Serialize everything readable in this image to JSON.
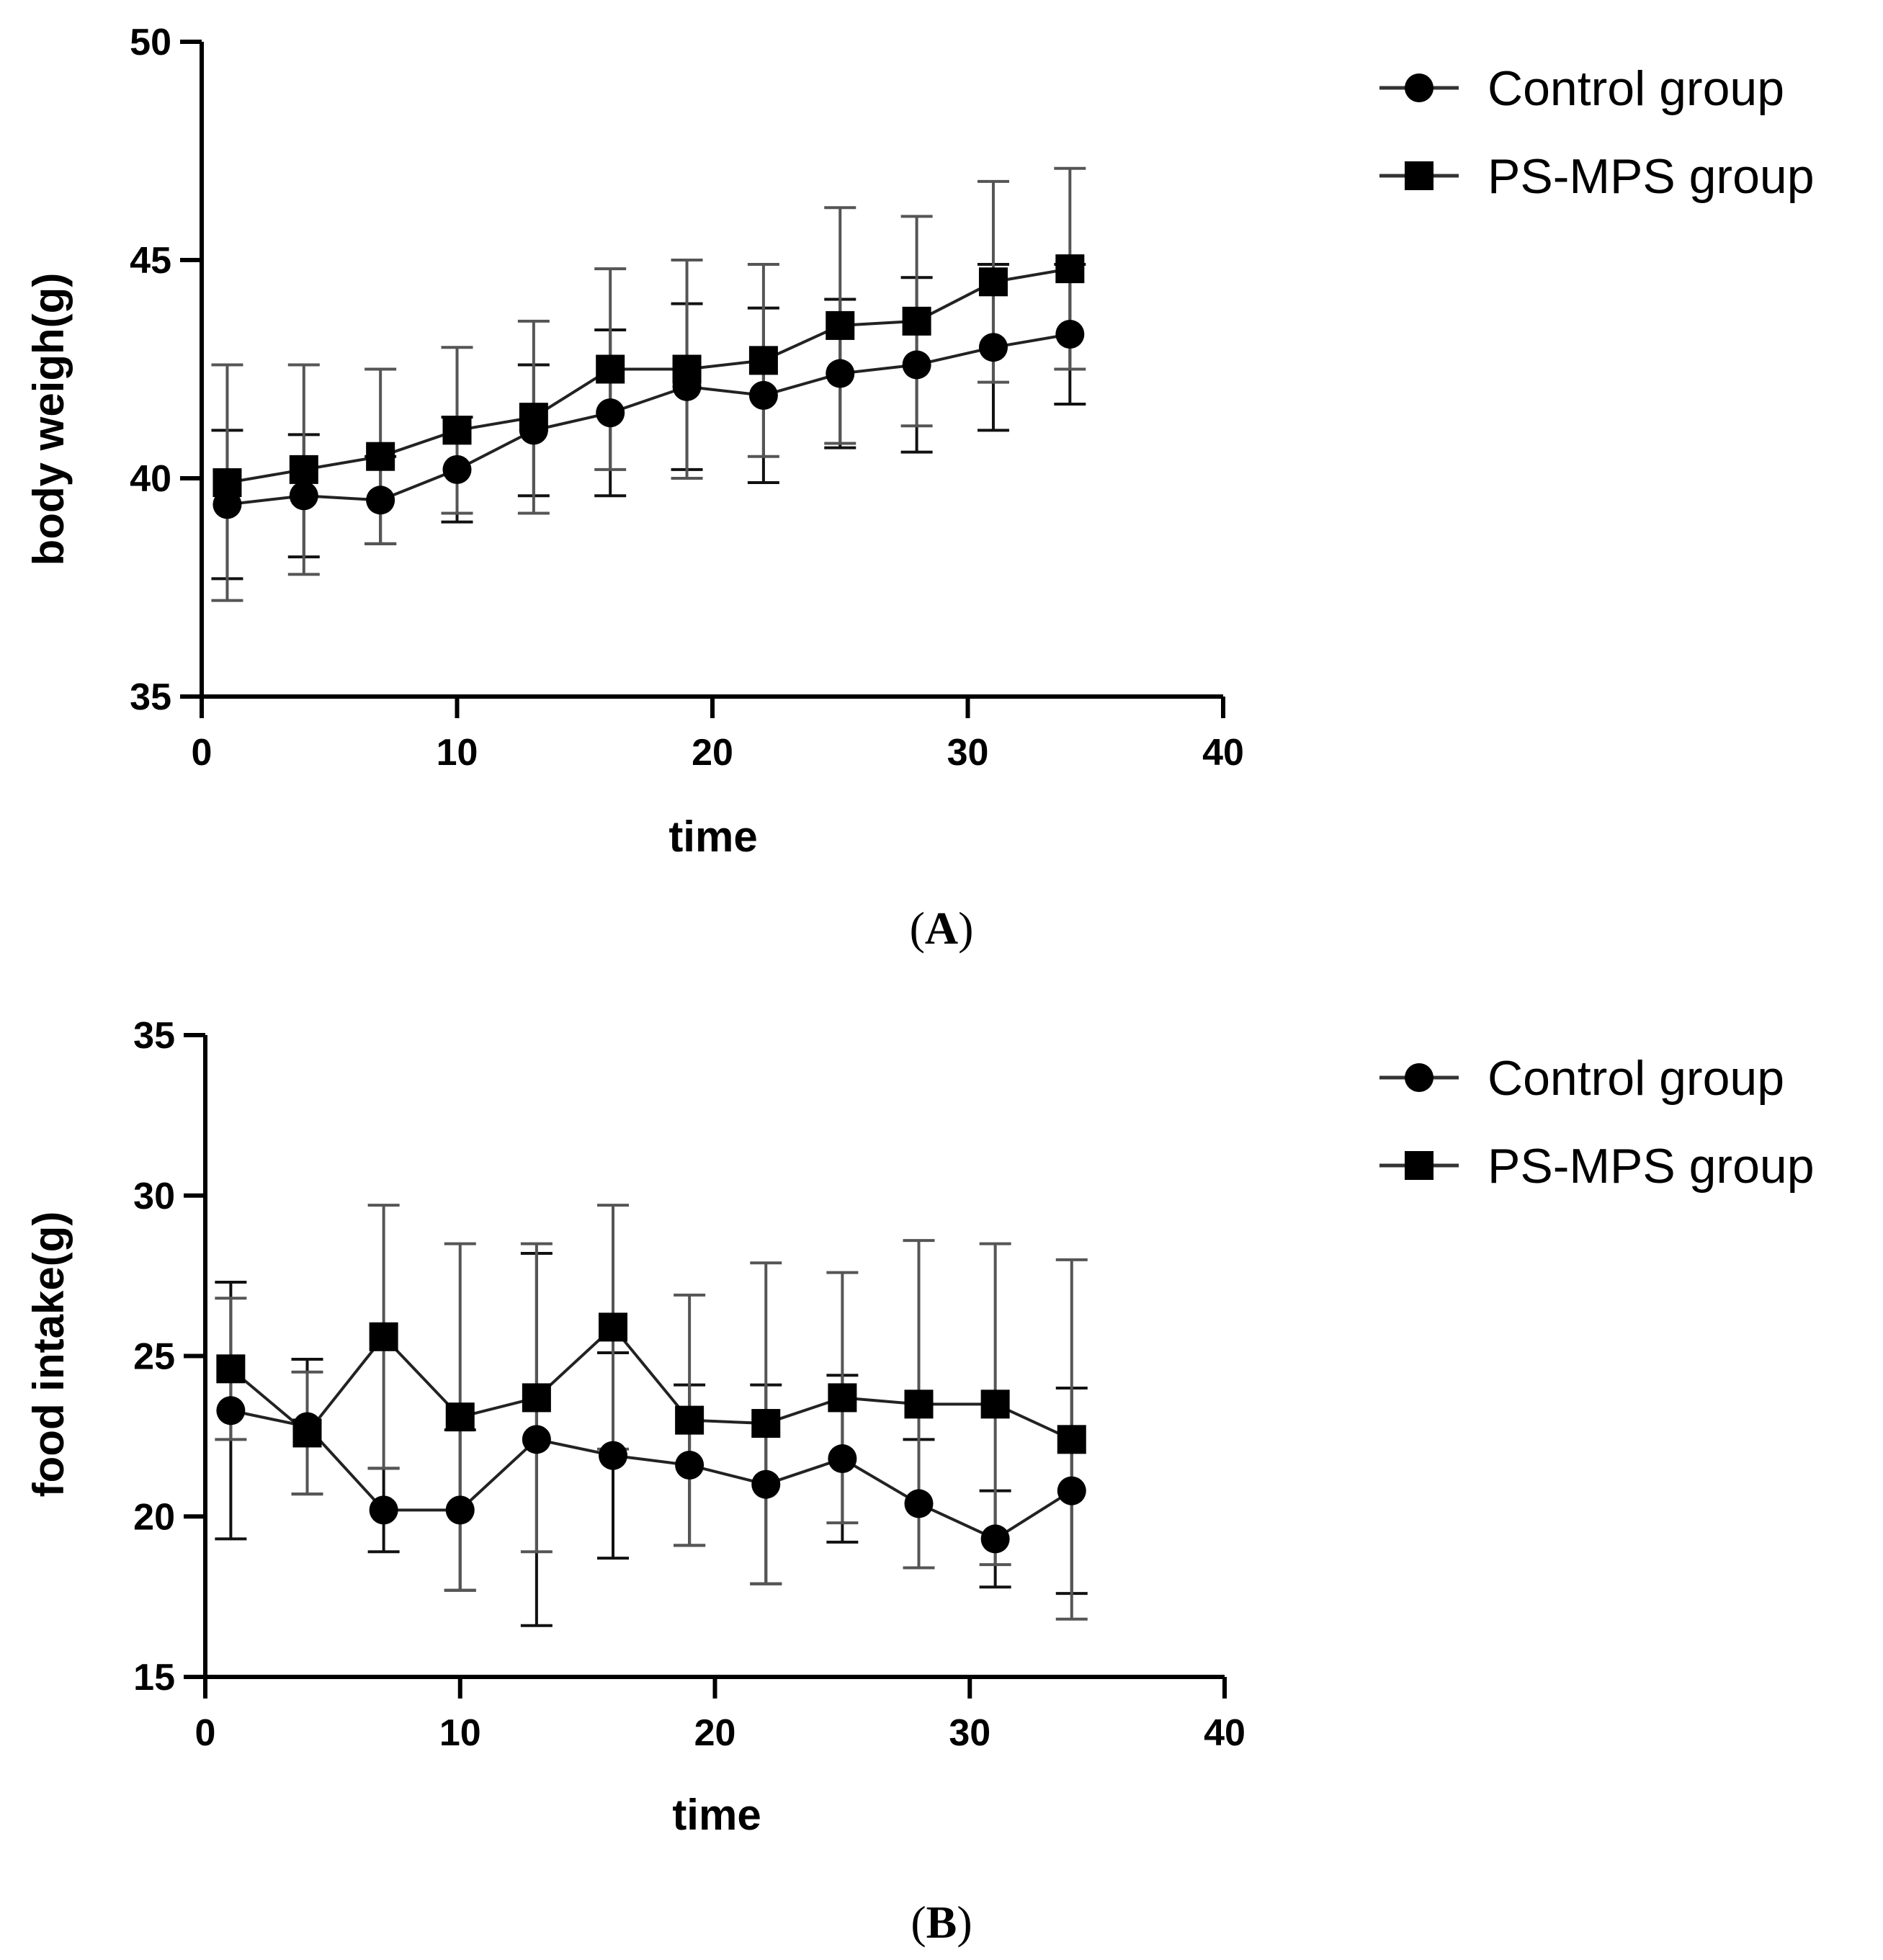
{
  "chart_data": [
    {
      "type": "line",
      "panel": "A",
      "title": "",
      "xlabel": "time",
      "ylabel": "body weigh(g)",
      "xlim": [
        0,
        40
      ],
      "ylim": [
        35,
        50
      ],
      "xticks": [
        0,
        10,
        20,
        30,
        40
      ],
      "yticks": [
        35,
        40,
        45,
        50
      ],
      "legend": "top-right",
      "series": [
        {
          "name": "Control group",
          "marker": "circle",
          "x": [
            1,
            4,
            7,
            10,
            13,
            16,
            19,
            22,
            25,
            28,
            31,
            34
          ],
          "y": [
            39.4,
            39.6,
            39.5,
            40.2,
            41.1,
            41.5,
            42.1,
            41.9,
            42.4,
            42.6,
            43.0,
            43.3
          ],
          "err": [
            1.7,
            1.4,
            1.0,
            1.2,
            1.5,
            1.9,
            1.9,
            2.0,
            1.7,
            2.0,
            1.9,
            1.6
          ]
        },
        {
          "name": "PS-MPS group",
          "marker": "square",
          "x": [
            1,
            4,
            7,
            10,
            13,
            16,
            19,
            22,
            25,
            28,
            31,
            34
          ],
          "y": [
            39.9,
            40.2,
            40.5,
            41.1,
            41.4,
            42.5,
            42.5,
            42.7,
            43.5,
            43.6,
            44.5,
            44.8
          ],
          "err": [
            2.7,
            2.4,
            2.0,
            1.9,
            2.2,
            2.3,
            2.5,
            2.2,
            2.7,
            2.4,
            2.3,
            2.3
          ]
        }
      ]
    },
    {
      "type": "line",
      "panel": "B",
      "title": "",
      "xlabel": "time",
      "ylabel": "food intake(g)",
      "xlim": [
        0,
        40
      ],
      "ylim": [
        15,
        35
      ],
      "xticks": [
        0,
        10,
        20,
        30,
        40
      ],
      "yticks": [
        15,
        20,
        25,
        30,
        35
      ],
      "legend": "top-right",
      "series": [
        {
          "name": "Control group",
          "marker": "circle",
          "x": [
            1,
            4,
            7,
            10,
            13,
            16,
            19,
            22,
            25,
            28,
            31,
            34
          ],
          "y": [
            23.3,
            22.8,
            20.2,
            20.2,
            22.4,
            21.9,
            21.6,
            21.0,
            21.8,
            20.4,
            19.3,
            20.8
          ],
          "err": [
            4.0,
            2.1,
            1.3,
            2.5,
            5.8,
            3.2,
            2.5,
            3.1,
            2.6,
            2.0,
            1.5,
            3.2
          ]
        },
        {
          "name": "PS-MPS group",
          "marker": "square",
          "x": [
            1,
            4,
            7,
            10,
            13,
            16,
            19,
            22,
            25,
            28,
            31,
            34
          ],
          "y": [
            24.6,
            22.6,
            25.6,
            23.1,
            23.7,
            25.9,
            23.0,
            22.9,
            23.7,
            23.5,
            23.5,
            22.4
          ],
          "err": [
            2.2,
            1.9,
            4.1,
            5.4,
            4.8,
            3.8,
            3.9,
            5.0,
            3.9,
            5.1,
            5.0,
            5.6
          ]
        }
      ]
    }
  ]
}
